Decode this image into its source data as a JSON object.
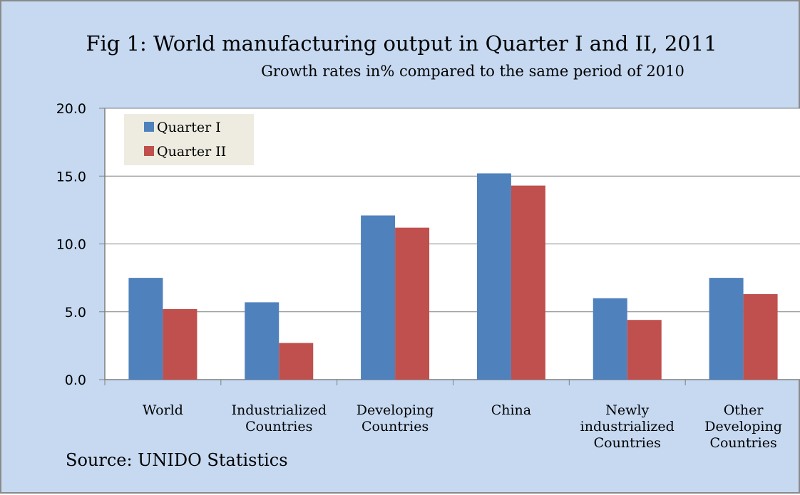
{
  "chart_data": {
    "type": "bar",
    "title": "Fig 1: World manufacturing output in Quarter I and II, 2011",
    "subtitle": "Growth rates in% compared to the same period of 2010",
    "source": "Source: UNIDO Statistics",
    "categories": [
      [
        "World"
      ],
      [
        "Industrialized",
        "Countries"
      ],
      [
        "Developing",
        "Countries"
      ],
      [
        "China"
      ],
      [
        "Newly",
        "industrialized",
        "Countries"
      ],
      [
        "Other",
        "Developing",
        "Countries"
      ]
    ],
    "series": [
      {
        "name": "Quarter I",
        "color": "#4f81bd",
        "values": [
          7.5,
          5.7,
          12.1,
          15.2,
          6.0,
          7.5
        ]
      },
      {
        "name": "Quarter II",
        "color": "#c0504d",
        "values": [
          5.2,
          2.7,
          11.2,
          14.3,
          4.4,
          6.3
        ]
      }
    ],
    "ylim": [
      0,
      20
    ],
    "yticks": [
      "0.0",
      "5.0",
      "10.0",
      "15.0",
      "20.0"
    ],
    "grid": true,
    "legend_position": "top-left",
    "xlabel": "",
    "ylabel": ""
  },
  "colors": {
    "background": "#c6d9f1",
    "plot_area": "#ffffff",
    "legend_background": "#eeece1",
    "gridline": "#7f7f7f"
  }
}
